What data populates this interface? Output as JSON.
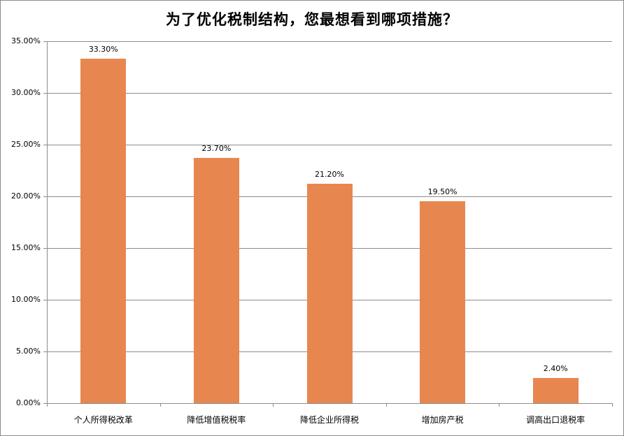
{
  "chart_data": {
    "type": "bar",
    "title": "为了优化税制结构，您最想看到哪项措施？",
    "categories": [
      "个人所得税改革",
      "降低增值税税率",
      "降低企业所得税",
      "增加房产税",
      "调高出口退税率"
    ],
    "values": [
      33.3,
      23.7,
      21.2,
      19.5,
      2.4
    ],
    "data_labels": [
      "33.30%",
      "23.70%",
      "21.20%",
      "19.50%",
      "2.40%"
    ],
    "xlabel": "",
    "ylabel": "",
    "ylim": [
      0,
      35
    ],
    "y_ticks": [
      "0.00%",
      "5.00%",
      "10.00%",
      "15.00%",
      "20.00%",
      "25.00%",
      "30.00%",
      "35.00%"
    ],
    "grid": true,
    "legend": "none",
    "bar_color": "#E8864F"
  }
}
